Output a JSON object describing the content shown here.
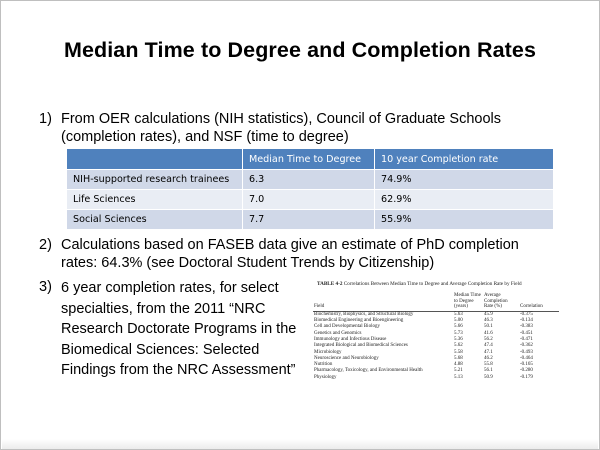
{
  "title": "Median Time to Degree and Completion Rates",
  "items": [
    {
      "number": "1)",
      "text": "From OER calculations (NIH statistics), Council of Graduate Schools (completion rates), and NSF (time to degree)"
    },
    {
      "number": "2)",
      "text": "Calculations based on FASEB data give an estimate of PhD completion rates: 64.3% (see Doctoral Student Trends by Citizenship)"
    },
    {
      "number": "3)",
      "text": "6 year completion rates, for select specialties, from the 2011 “NRC Research Doctorate Programs in the Biomedical Sciences: Selected Findings from the NRC Assessment”"
    }
  ],
  "stats_table": {
    "headers": [
      "",
      "Median Time to Degree",
      "10 year Completion rate"
    ],
    "rows": [
      [
        "NIH-supported research trainees",
        "6.3",
        "74.9%"
      ],
      [
        "Life Sciences",
        "7.0",
        "62.9%"
      ],
      [
        "Social Sciences",
        "7.7",
        "55.9%"
      ]
    ]
  },
  "inset_table": {
    "caption_label": "TABLE 4-2",
    "caption": "Correlations Between Median Time to Degree and Average Completion Rate by Field",
    "headers": [
      "Field",
      "Median Time to Degree (years)",
      "Average Completion Rate (%)",
      "Correlation"
    ],
    "rows": [
      [
        "Biochemistry, Biophysics, and Structural Biology",
        "5.63",
        "45.9",
        "-0.375"
      ],
      [
        "Biomedical Engineering and Bioengineering",
        "5.00",
        "46.3",
        "-0.134"
      ],
      [
        "Cell and Developmental Biology",
        "5.66",
        "50.1",
        "-0.383"
      ],
      [
        "Genetics and Genomics",
        "5.73",
        "41.6",
        "-0.451"
      ],
      [
        "Immunology and Infectious Disease",
        "5.36",
        "56.2",
        "-0.471"
      ],
      [
        "Integrated Biological and Biomedical Sciences",
        "5.62",
        "47.4",
        "-0.362"
      ],
      [
        "Microbiology",
        "5.58",
        "47.1",
        "-0.493"
      ],
      [
        "Neuroscience and Neurobiology",
        "5.68",
        "46.2",
        "-0.464"
      ],
      [
        "Nutrition",
        "4.88",
        "55.8",
        "-0.165"
      ],
      [
        "Pharmacology, Toxicology, and Environmental Health",
        "5.21",
        "56.1",
        "-0.280"
      ],
      [
        "Physiology",
        "5.13",
        "50.9",
        "-0.179"
      ]
    ]
  }
}
